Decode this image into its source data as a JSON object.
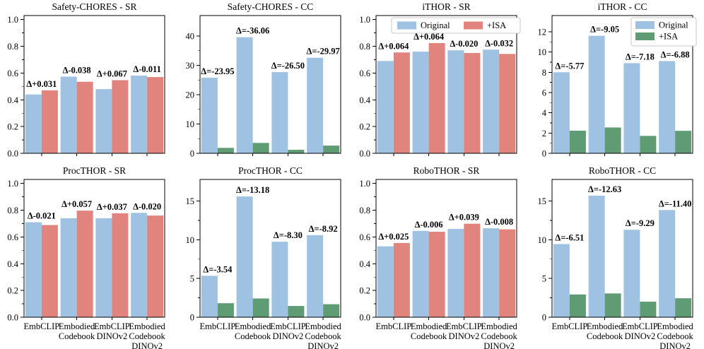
{
  "figure": {
    "background": "#ffffff"
  },
  "colors": {
    "original": "#9FC2E2",
    "isa_red": "#E0847D",
    "isa_green": "#5F9C74",
    "delta_red": "#E87A70",
    "delta_green": "#4F9671",
    "axis": "#000000",
    "legend_border": "#c8c8c8"
  },
  "category_lines": [
    [
      "EmbCLIP"
    ],
    [
      "Embodied",
      "Codebook"
    ],
    [
      "EmbCLIP",
      "DINOv2"
    ],
    [
      "Embodied",
      "Codebook",
      "DINOv2"
    ]
  ],
  "chart_data": [
    {
      "type": "bar",
      "title": "Safety-CHORES - SR",
      "categories": [
        "EmbCLIP",
        "Embodied Codebook",
        "EmbCLIP DINOv2",
        "Embodied Codebook DINOv2"
      ],
      "series": [
        {
          "name": "Original",
          "values": [
            0.44,
            0.573,
            0.48,
            0.581
          ]
        },
        {
          "name": "+ISA",
          "values": [
            0.471,
            0.535,
            0.547,
            0.57
          ]
        }
      ],
      "deltas": [
        "Δ+0.031",
        "Δ-0.038",
        "Δ+0.067",
        "Δ-0.011"
      ],
      "yticks": [
        0,
        0.2,
        0.4,
        0.6,
        0.8,
        1.0
      ],
      "ytick_labels": [
        "0.0",
        "0.2",
        "0.4",
        "0.6",
        "0.8",
        "1.0"
      ],
      "ylim": [
        0,
        1.03
      ],
      "isa_color": "isa_red",
      "delta_color": "delta_red"
    },
    {
      "type": "bar",
      "title": "Safety-CHORES - CC",
      "categories": [
        "EmbCLIP",
        "Embodied Codebook",
        "EmbCLIP DINOv2",
        "Embodied Codebook DINOv2"
      ],
      "series": [
        {
          "name": "Original",
          "values": [
            25.8,
            39.6,
            27.7,
            32.6
          ]
        },
        {
          "name": "+ISA",
          "values": [
            1.85,
            3.54,
            1.2,
            2.63
          ]
        }
      ],
      "deltas": [
        "Δ=-23.95",
        "Δ=-36.06",
        "Δ=-26.50",
        "Δ=-29.97"
      ],
      "yticks": [
        0,
        10,
        20,
        30,
        40
      ],
      "ytick_labels": [
        "0",
        "10",
        "20",
        "30",
        "40"
      ],
      "ylim": [
        0,
        47
      ],
      "isa_color": "isa_green",
      "delta_color": "delta_green"
    },
    {
      "type": "bar",
      "title": "iTHOR - SR",
      "categories": [
        "EmbCLIP",
        "Embodied Codebook",
        "EmbCLIP DINOv2",
        "Embodied Codebook DINOv2"
      ],
      "series": [
        {
          "name": "Original",
          "values": [
            0.69,
            0.76,
            0.77,
            0.775
          ]
        },
        {
          "name": "+ISA",
          "values": [
            0.754,
            0.824,
            0.75,
            0.743
          ]
        }
      ],
      "deltas": [
        "Δ+0.064",
        "Δ+0.064",
        "Δ-0.020",
        "Δ-0.032"
      ],
      "yticks": [
        0,
        0.2,
        0.4,
        0.6,
        0.8,
        1.0
      ],
      "ytick_labels": [
        "0.0",
        "0.2",
        "0.4",
        "0.6",
        "0.8",
        "1.0"
      ],
      "ylim": [
        0,
        1.03
      ],
      "isa_color": "isa_red",
      "delta_color": "delta_red",
      "legend": {
        "position": "top-horizontal",
        "entries": [
          {
            "label": "Original",
            "color_key": "original"
          },
          {
            "label": "+ISA",
            "color_key": "isa_red"
          }
        ]
      }
    },
    {
      "type": "bar",
      "title": "iTHOR - CC",
      "categories": [
        "EmbCLIP",
        "Embodied Codebook",
        "EmbCLIP DINOv2",
        "Embodied Codebook DINOv2"
      ],
      "series": [
        {
          "name": "Original",
          "values": [
            8.0,
            11.6,
            8.9,
            9.1
          ]
        },
        {
          "name": "+ISA",
          "values": [
            2.23,
            2.55,
            1.72,
            2.22
          ]
        }
      ],
      "deltas": [
        "Δ=-5.77",
        "Δ=-9.05",
        "Δ=-7.18",
        "Δ=-6.88"
      ],
      "yticks": [
        0,
        2,
        4,
        6,
        8,
        10,
        12
      ],
      "ytick_labels": [
        "0",
        "2",
        "4",
        "6",
        "8",
        "10",
        "12"
      ],
      "ylim": [
        0,
        13.6
      ],
      "isa_color": "isa_green",
      "delta_color": "delta_green",
      "legend": {
        "position": "top-right-vertical",
        "entries": [
          {
            "label": "Original",
            "color_key": "original"
          },
          {
            "label": "+ISA",
            "color_key": "isa_green"
          }
        ]
      }
    },
    {
      "type": "bar",
      "title": "ProcTHOR - SR",
      "categories": [
        "EmbCLIP",
        "Embodied Codebook",
        "EmbCLIP DINOv2",
        "Embodied Codebook DINOv2"
      ],
      "series": [
        {
          "name": "Original",
          "values": [
            0.71,
            0.74,
            0.74,
            0.78
          ]
        },
        {
          "name": "+ISA",
          "values": [
            0.689,
            0.797,
            0.777,
            0.76
          ]
        }
      ],
      "deltas": [
        "Δ-0.021",
        "Δ+0.057",
        "Δ+0.037",
        "Δ-0.020"
      ],
      "yticks": [
        0,
        0.2,
        0.4,
        0.6,
        0.8,
        1.0
      ],
      "ytick_labels": [
        "0.0",
        "0.2",
        "0.4",
        "0.6",
        "0.8",
        "1.0"
      ],
      "ylim": [
        0,
        1.03
      ],
      "isa_color": "isa_red",
      "delta_color": "delta_red"
    },
    {
      "type": "bar",
      "title": "ProcTHOR - CC",
      "categories": [
        "EmbCLIP",
        "Embodied Codebook",
        "EmbCLIP DINOv2",
        "Embodied Codebook DINOv2"
      ],
      "series": [
        {
          "name": "Original",
          "values": [
            5.35,
            15.6,
            9.75,
            10.6
          ]
        },
        {
          "name": "+ISA",
          "values": [
            1.81,
            2.42,
            1.45,
            1.68
          ]
        }
      ],
      "deltas": [
        "Δ=-3.54",
        "Δ=-13.18",
        "Δ=-8.30",
        "Δ=-8.92"
      ],
      "yticks": [
        0,
        5,
        10,
        15
      ],
      "ytick_labels": [
        "0",
        "5",
        "10",
        "15"
      ],
      "ylim": [
        0,
        17.8
      ],
      "isa_color": "isa_green",
      "delta_color": "delta_green"
    },
    {
      "type": "bar",
      "title": "RoboTHOR - SR",
      "categories": [
        "EmbCLIP",
        "Embodied Codebook",
        "EmbCLIP DINOv2",
        "Embodied Codebook DINOv2"
      ],
      "series": [
        {
          "name": "Original",
          "values": [
            0.53,
            0.645,
            0.66,
            0.665
          ]
        },
        {
          "name": "+ISA",
          "values": [
            0.555,
            0.639,
            0.699,
            0.657
          ]
        }
      ],
      "deltas": [
        "Δ+0.025",
        "Δ-0.006",
        "Δ+0.039",
        "Δ-0.008"
      ],
      "yticks": [
        0,
        0.2,
        0.4,
        0.6,
        0.8,
        1.0
      ],
      "ytick_labels": [
        "0.0",
        "0.2",
        "0.4",
        "0.6",
        "0.8",
        "1.0"
      ],
      "ylim": [
        0,
        1.03
      ],
      "isa_color": "isa_red",
      "delta_color": "delta_red"
    },
    {
      "type": "bar",
      "title": "RoboTHOR - CC",
      "categories": [
        "EmbCLIP",
        "Embodied Codebook",
        "EmbCLIP DINOv2",
        "Embodied Codebook DINOv2"
      ],
      "series": [
        {
          "name": "Original",
          "values": [
            9.45,
            15.7,
            11.3,
            13.85
          ]
        },
        {
          "name": "+ISA",
          "values": [
            2.94,
            3.07,
            2.01,
            2.45
          ]
        }
      ],
      "deltas": [
        "Δ=-6.51",
        "Δ=-12.63",
        "Δ=-9.29",
        "Δ=-11.40"
      ],
      "yticks": [
        0,
        5,
        10,
        15
      ],
      "ytick_labels": [
        "0",
        "5",
        "10",
        "15"
      ],
      "ylim": [
        0,
        17.8
      ],
      "isa_color": "isa_green",
      "delta_color": "delta_green"
    }
  ]
}
